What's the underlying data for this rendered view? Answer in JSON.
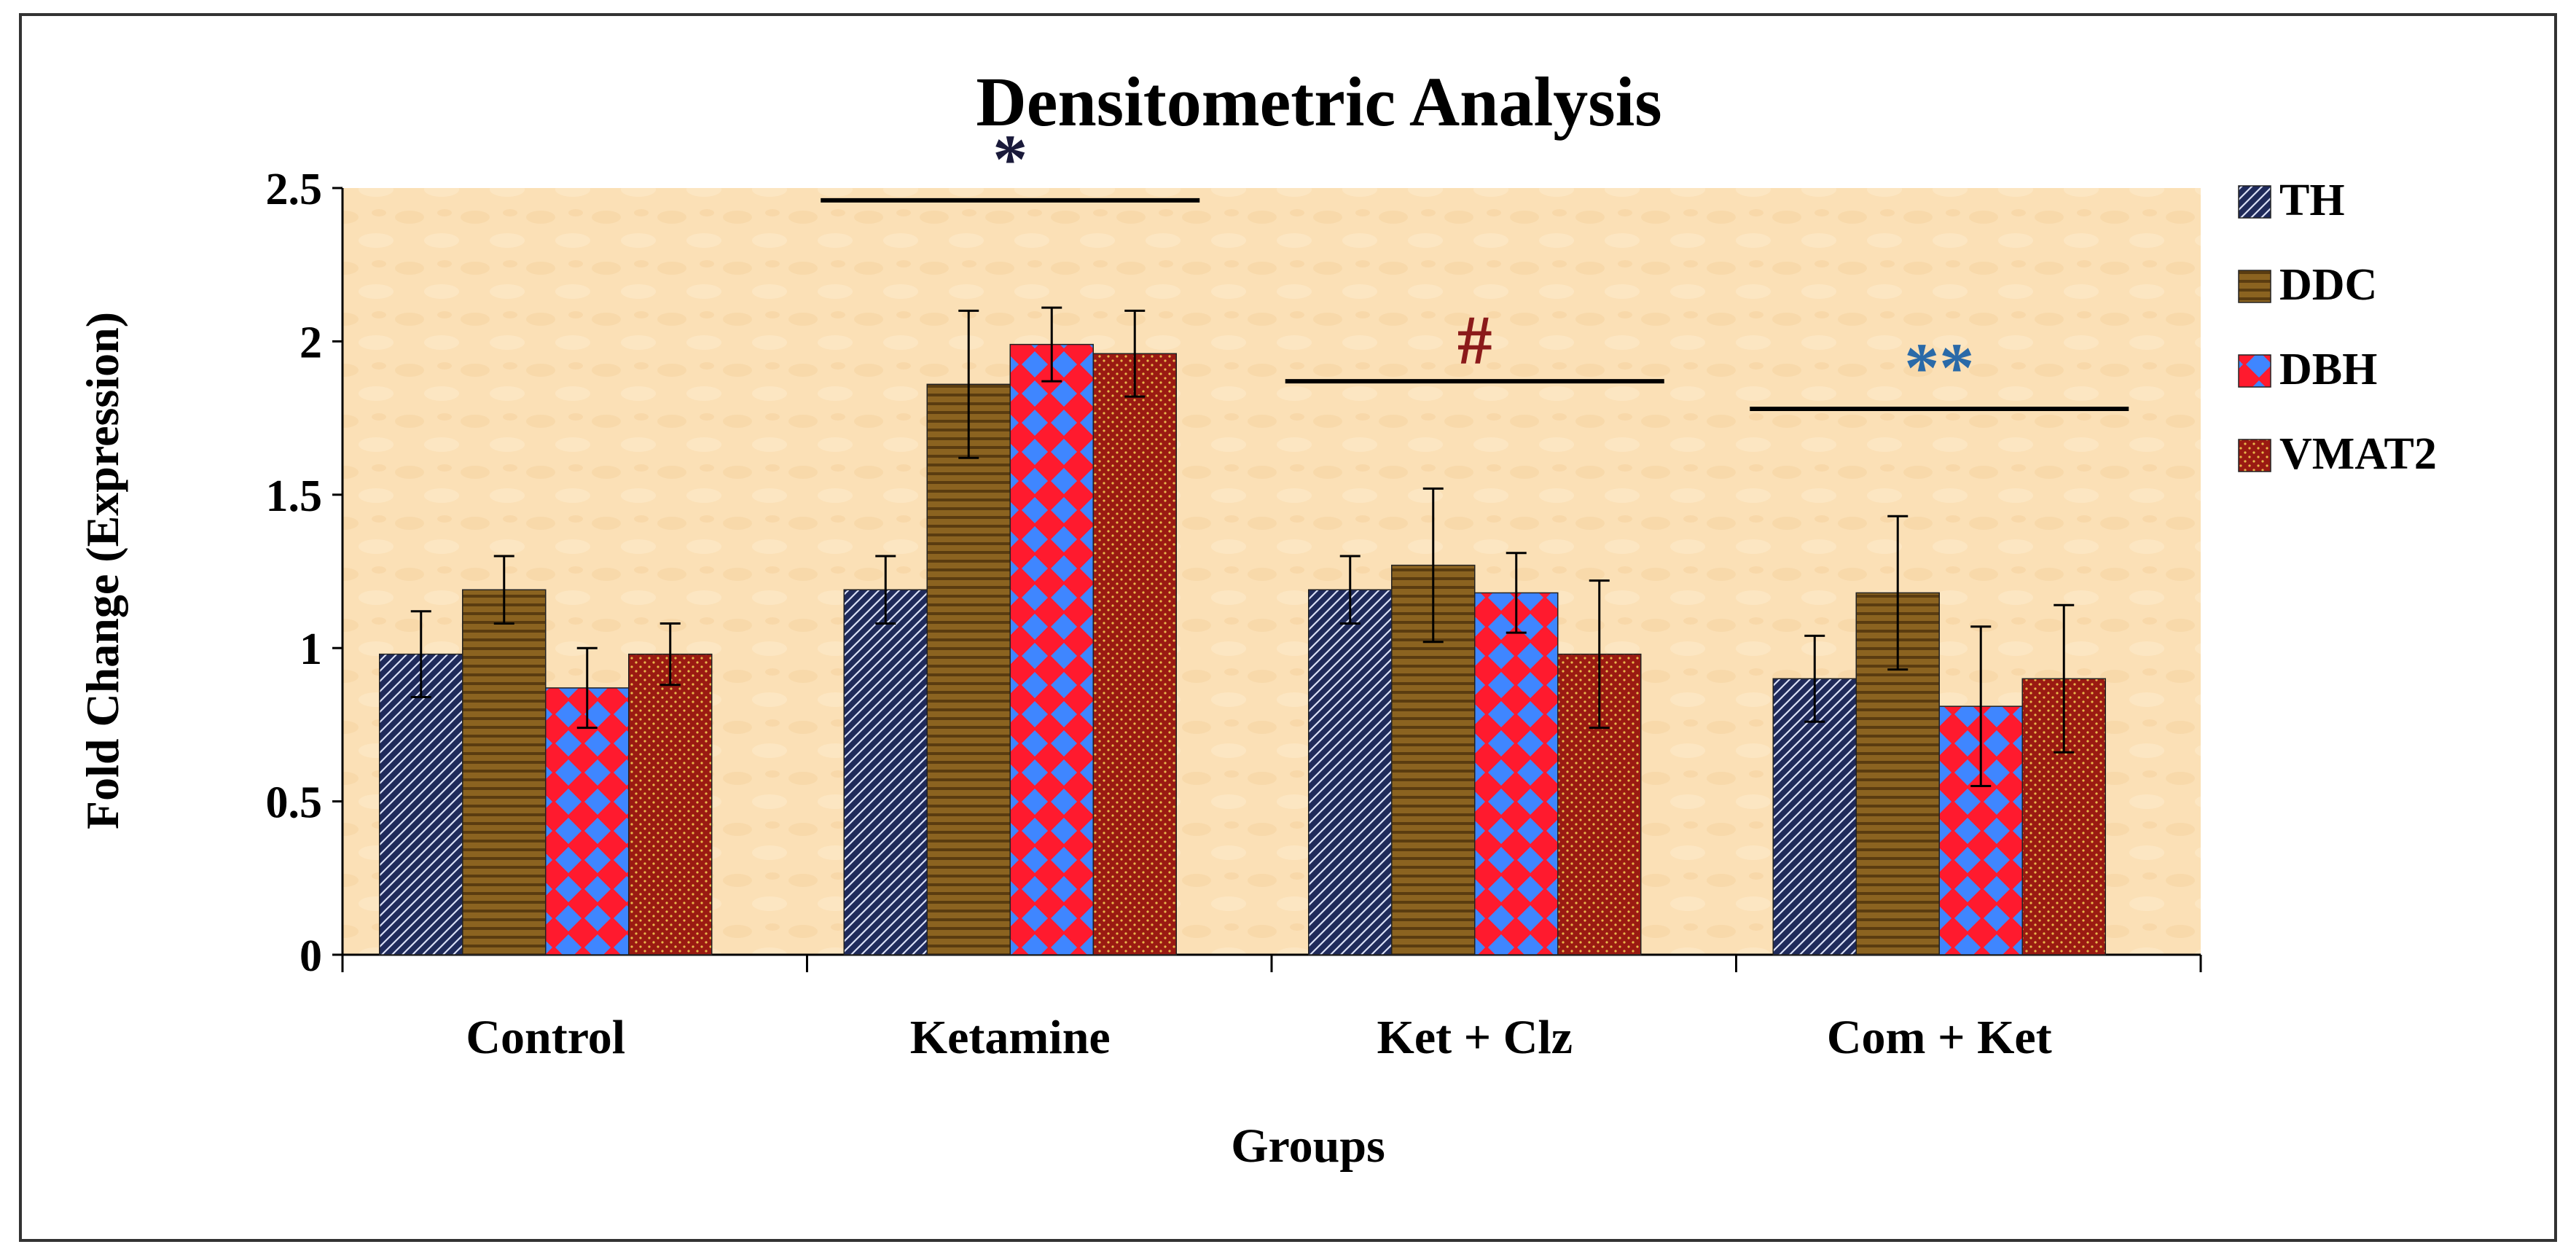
{
  "chart_data": {
    "type": "bar",
    "title": "Densitometric Analysis",
    "xlabel": "Groups",
    "ylabel": "Fold Change (Expression)",
    "ylim": [
      0,
      2.5
    ],
    "yticks": [
      "0",
      "0.5",
      "1",
      "1.5",
      "2",
      "2.5"
    ],
    "ytick_values": [
      0,
      0.5,
      1,
      1.5,
      2,
      2.5
    ],
    "categories": [
      "Control",
      "Ketamine",
      "Ket + Clz",
      "Com + Ket"
    ],
    "series": [
      {
        "name": "TH",
        "values": [
          0.98,
          1.19,
          1.19,
          0.9
        ],
        "errors": [
          0.14,
          0.11,
          0.11,
          0.14
        ],
        "color": "#1f2a5a",
        "pattern": "diagonal"
      },
      {
        "name": "DDC",
        "values": [
          1.19,
          1.86,
          1.27,
          1.18
        ],
        "errors": [
          0.11,
          0.24,
          0.25,
          0.25
        ],
        "color": "#8b6320",
        "pattern": "horizontal"
      },
      {
        "name": "DBH",
        "values": [
          0.87,
          1.99,
          1.18,
          0.81
        ],
        "errors": [
          0.13,
          0.12,
          0.13,
          0.26
        ],
        "color": "#ff1a2e",
        "pattern": "diamond"
      },
      {
        "name": "VMAT2",
        "values": [
          0.98,
          1.96,
          0.98,
          0.9
        ],
        "errors": [
          0.1,
          0.14,
          0.24,
          0.24
        ],
        "color": "#9a1a12",
        "pattern": "dots"
      }
    ],
    "annotations": [
      {
        "text": "*",
        "category": "Ketamine",
        "color": "#1a1a3a"
      },
      {
        "text": "#",
        "category": "Ket + Clz",
        "color": "#8b1a1a"
      },
      {
        "text": "**",
        "category": "Com + Ket",
        "color": "#2a6aa8"
      }
    ],
    "legend_position": "right"
  }
}
